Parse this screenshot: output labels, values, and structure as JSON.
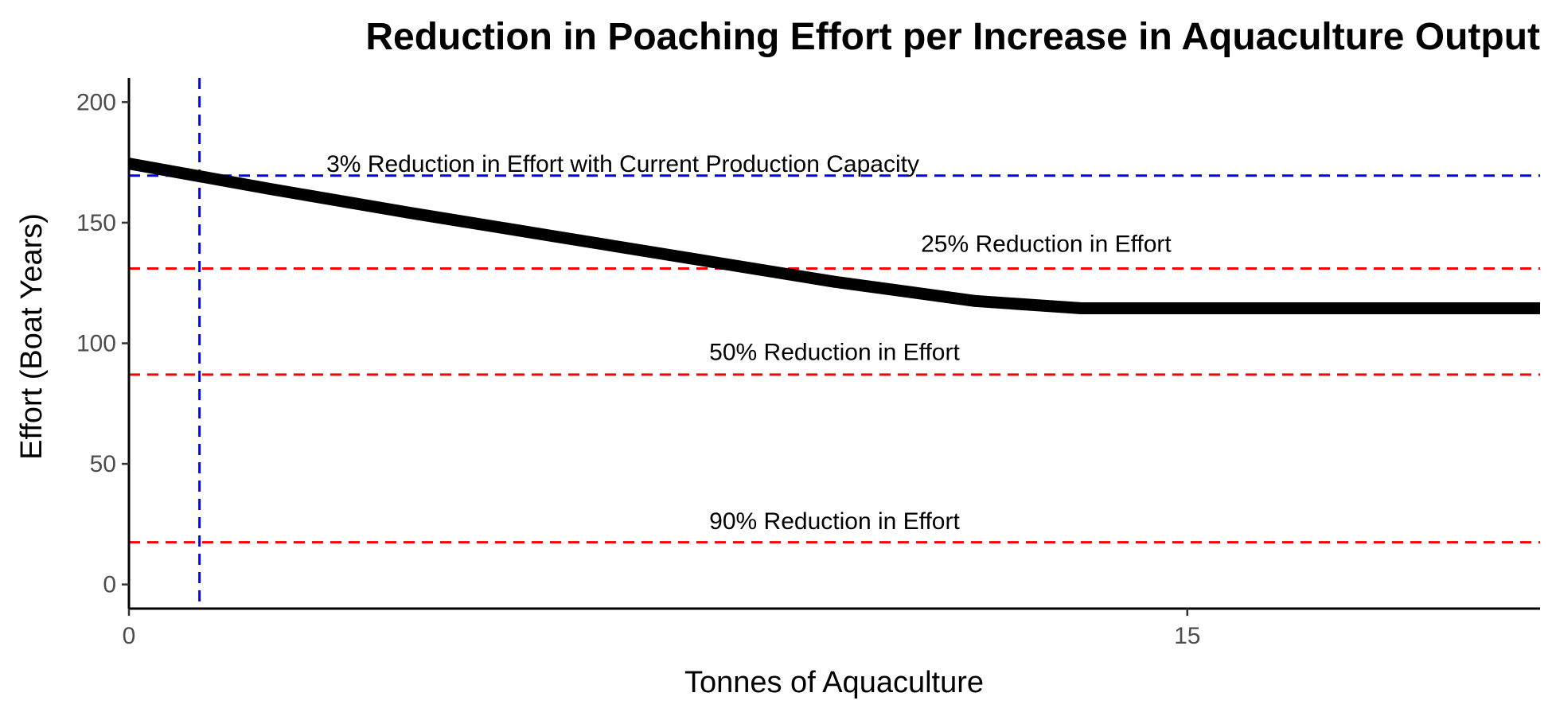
{
  "chart_data": {
    "type": "line",
    "title": "Reduction in Poaching Effort per Increase in Aquaculture Output",
    "xlabel": "Tonnes of Aquaculture",
    "ylabel": "Effort (Boat Years)",
    "xlim": [
      0,
      20
    ],
    "ylim": [
      -10,
      210
    ],
    "x_ticks": [
      0,
      15
    ],
    "y_ticks": [
      0,
      50,
      100,
      150,
      200
    ],
    "grid": false,
    "series": [
      {
        "color": "#000000",
        "x": [
          0,
          2,
          4,
          6,
          8,
          10,
          12,
          13.5,
          15,
          16,
          18,
          20
        ],
        "y": [
          174.5,
          164.0,
          154.0,
          144.5,
          135.0,
          125.5,
          117.5,
          114.5,
          114.5,
          114.5,
          114.5,
          114.5
        ]
      }
    ],
    "reference_lines": [
      {
        "orientation": "vertical",
        "x": 1.0,
        "color": "#0000ff",
        "style": "dashed"
      },
      {
        "orientation": "horizontal",
        "y": 169.5,
        "color": "#0000ff",
        "style": "dashed"
      },
      {
        "orientation": "horizontal",
        "y": 131.0,
        "color": "#ff0000",
        "style": "dashed"
      },
      {
        "orientation": "horizontal",
        "y": 87.0,
        "color": "#ff0000",
        "style": "dashed"
      },
      {
        "orientation": "horizontal",
        "y": 17.5,
        "color": "#ff0000",
        "style": "dashed"
      }
    ],
    "annotations": [
      {
        "text": "3% Reduction in Effort with Current Production Capacity",
        "x": 7.0,
        "y": 171.0
      },
      {
        "text": "25% Reduction in Effort",
        "x": 13.0,
        "y": 138.0
      },
      {
        "text": "50% Reduction in Effort",
        "x": 10.0,
        "y": 93.0
      },
      {
        "text": "90% Reduction in Effort",
        "x": 10.0,
        "y": 23.0
      }
    ]
  }
}
